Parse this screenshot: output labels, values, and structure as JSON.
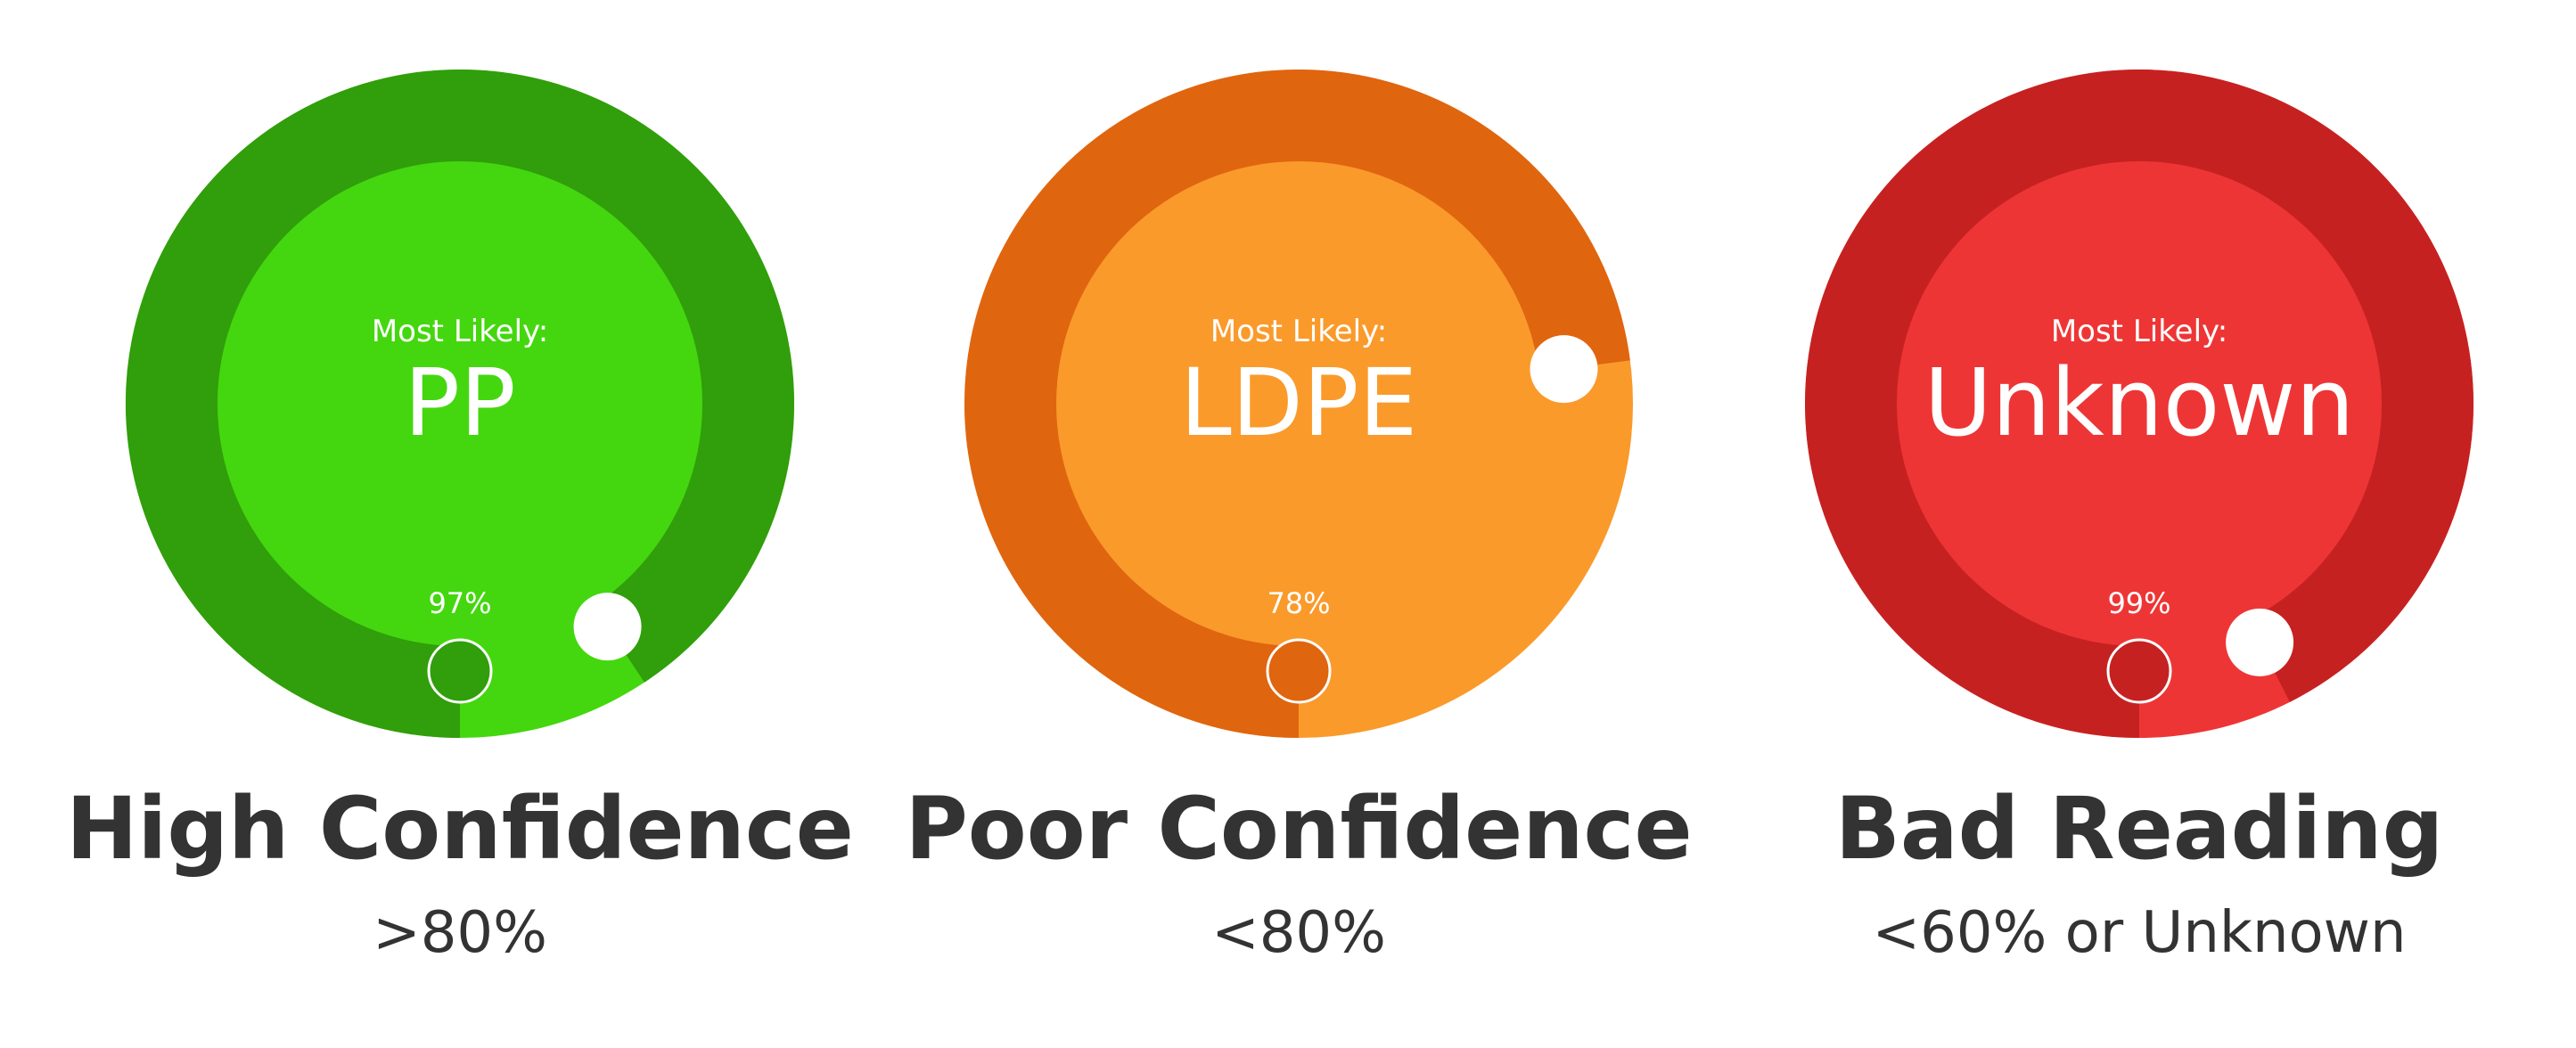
{
  "gauges": [
    {
      "label": "Most Likely:",
      "value": "PP",
      "percent": "97%",
      "confidence": 0.97,
      "heading": "High Confidence",
      "threshold": ">80%",
      "colors": {
        "outer": "#44d70f",
        "ring": "#319e0b",
        "inner": "#44d70f"
      }
    },
    {
      "label": "Most Likely:",
      "value": "LDPE",
      "percent": "78%",
      "confidence": 0.78,
      "heading": "Poor Confidence",
      "threshold": "<80%",
      "colors": {
        "outer": "#fa9a2b",
        "ring": "#e0650f",
        "inner": "#fa9a2b"
      }
    },
    {
      "label": "Most Likely:",
      "value": "Unknown",
      "percent": "99%",
      "confidence": 0.99,
      "heading": "Bad Reading",
      "threshold": "<60% or Unknown",
      "colors": {
        "outer": "#ee3535",
        "ring": "#c62121",
        "inner": "#ee3535"
      }
    }
  ]
}
